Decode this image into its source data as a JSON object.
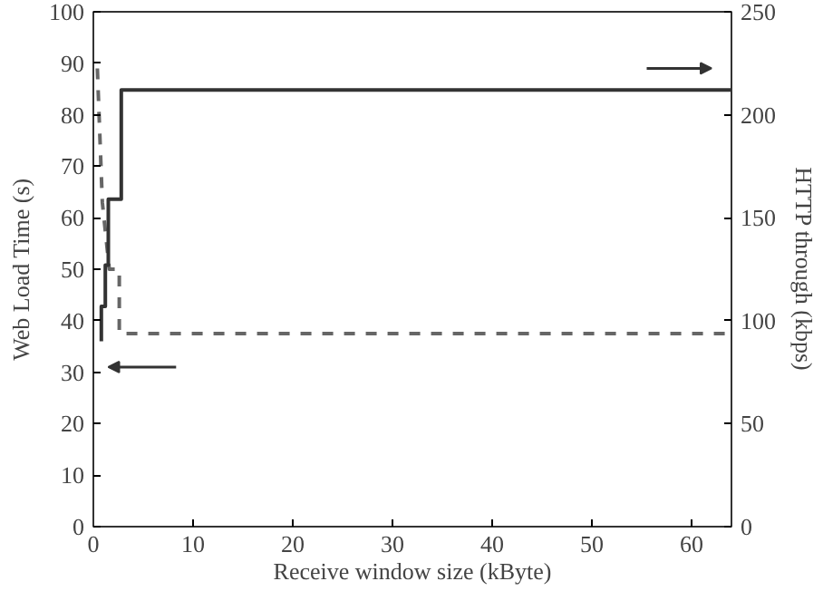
{
  "chart_data": {
    "type": "line",
    "xlabel": "Receive window size (kByte)",
    "ylabel": "Web Load Time (s)",
    "y2label": "HTTP through (kbps)",
    "xlim": [
      0,
      64
    ],
    "xticks": [
      0,
      10,
      20,
      30,
      40,
      50,
      60
    ],
    "ylim": [
      0,
      100
    ],
    "yticks": [
      0,
      10,
      20,
      30,
      40,
      50,
      60,
      70,
      80,
      90,
      100
    ],
    "y2lim": [
      0,
      250
    ],
    "y2ticks": [
      0,
      50,
      100,
      150,
      200,
      250
    ],
    "grid": false,
    "series": [
      {
        "color": "#666666",
        "line_style": "dashed",
        "x": [
          0.4,
          0.9,
          0.9,
          1.6,
          1.6,
          2.6,
          2.6,
          64
        ],
        "values": [
          89,
          63,
          63,
          50,
          50,
          50,
          37.5,
          37.5
        ]
      },
      {
        "color": "#333333",
        "line_style": "solid",
        "axis": "y2",
        "x": [
          0.8,
          0.8,
          1.2,
          1.2,
          1.5,
          1.5,
          2.8,
          2.8,
          64
        ],
        "values": [
          90,
          107,
          107,
          127,
          127,
          159,
          159,
          212,
          212
        ]
      }
    ]
  }
}
